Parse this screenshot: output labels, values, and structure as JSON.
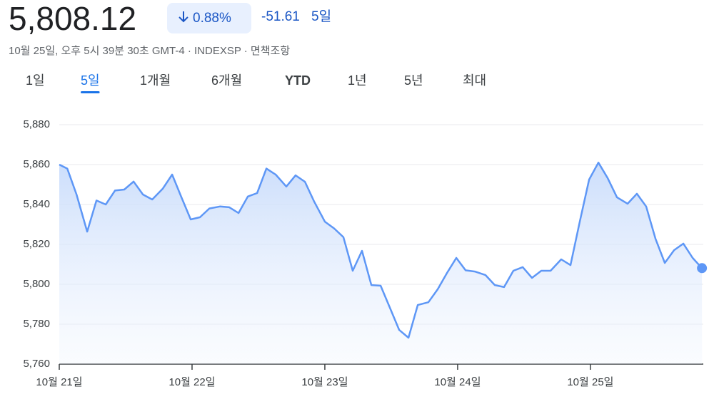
{
  "header": {
    "price": "5,808.12",
    "change_percent": "0.88%",
    "change_value": "-51.61",
    "period": "5일",
    "timestamp": "10월 25일, 오후 5시 39분 30초 GMT-4 · INDEXSP · 면책조항"
  },
  "tabs": {
    "items": [
      "1일",
      "5일",
      "1개월",
      "6개월",
      "YTD",
      "1년",
      "5년",
      "최대"
    ],
    "selected": 1
  },
  "chart_data": {
    "type": "line",
    "color": "#5e97f6",
    "grid": true,
    "x": [
      0,
      0.06,
      0.13,
      0.21,
      0.28,
      0.35,
      0.42,
      0.49,
      0.56,
      0.63,
      0.7,
      0.78,
      0.85,
      0.92,
      0.99,
      1.06,
      1.13,
      1.21,
      1.28,
      1.35,
      1.42,
      1.49,
      1.56,
      1.63,
      1.71,
      1.78,
      1.85,
      1.92,
      2,
      2.07,
      2.14,
      2.21,
      2.28,
      2.35,
      2.42,
      2.49,
      2.56,
      2.63,
      2.7,
      2.78,
      2.85,
      2.92,
      2.99,
      3.06,
      3.13,
      3.21,
      3.28,
      3.35,
      3.42,
      3.49,
      3.56,
      3.63,
      3.7,
      3.78,
      3.85,
      3.92,
      3.99,
      4.06,
      4.13,
      4.2,
      4.28,
      4.35,
      4.42,
      4.49,
      4.56,
      4.63,
      4.7,
      4.77,
      4.84
    ],
    "values": [
      5860,
      5858,
      5845,
      5826.4,
      5842,
      5840,
      5847,
      5847.5,
      5851.5,
      5845,
      5842.5,
      5848,
      5855,
      5843.6,
      5832.5,
      5833.6,
      5838,
      5839,
      5838.6,
      5835.7,
      5844,
      5845.7,
      5858,
      5855,
      5849,
      5854.6,
      5851.4,
      5841.4,
      5831.4,
      5828,
      5823.6,
      5806.8,
      5816.8,
      5799.6,
      5799.3,
      5788.2,
      5777.1,
      5773.2,
      5789.6,
      5791,
      5797.5,
      5805.7,
      5813.2,
      5807,
      5806.4,
      5804.6,
      5799.6,
      5798.6,
      5806.8,
      5808.6,
      5803.2,
      5806.8,
      5806.8,
      5812.5,
      5809.6,
      5831.4,
      5852.5,
      5861,
      5853.2,
      5843.6,
      5840.4,
      5845.4,
      5839,
      5822.9,
      5810.7,
      5817.1,
      5820.4,
      5813.2,
      5808.12
    ],
    "xlim": [
      0,
      4.85
    ],
    "xticks": [
      {
        "value": 0,
        "label": "10월 21일"
      },
      {
        "value": 1,
        "label": "10월 22일"
      },
      {
        "value": 2,
        "label": "10월 23일"
      },
      {
        "value": 3,
        "label": "10월 24일"
      },
      {
        "value": 4,
        "label": "10월 25일"
      }
    ],
    "ylim": [
      5760,
      5880
    ],
    "yticks": [
      {
        "value": 5760,
        "label": "5,760"
      },
      {
        "value": 5780,
        "label": "5,780"
      },
      {
        "value": 5800,
        "label": "5,800"
      },
      {
        "value": 5820,
        "label": "5,820"
      },
      {
        "value": 5840,
        "label": "5,840"
      },
      {
        "value": 5860,
        "label": "5,860"
      },
      {
        "value": 5880,
        "label": "5,880"
      }
    ]
  }
}
